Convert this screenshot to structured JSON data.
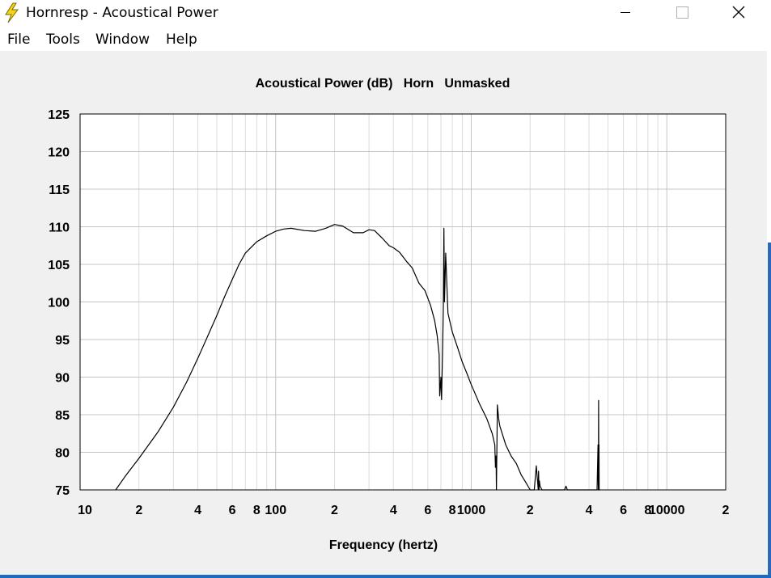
{
  "window": {
    "title": "Hornresp - Acoustical Power",
    "controls": {
      "minimize": "minimize-icon",
      "maximize": "maximize-icon",
      "close": "close-icon"
    }
  },
  "menu": [
    "File",
    "Tools",
    "Window",
    "Help"
  ],
  "colors": {
    "grid_major": "#c4c4c4",
    "grid_minor": "#dcdcdc",
    "trace": "#000000",
    "plot_bg": "#ffffff"
  },
  "chart_data": {
    "type": "line",
    "title": "Acoustical Power (dB)   Horn   Unmasked",
    "xlabel": "Frequency (hertz)",
    "ylabel": "",
    "x_scale": "log",
    "xlim": [
      10,
      20000
    ],
    "ylim": [
      75,
      125
    ],
    "yticks": [
      75,
      80,
      85,
      90,
      95,
      100,
      105,
      110,
      115,
      120,
      125
    ],
    "xtick_labels": [
      {
        "x": 10,
        "label": "10"
      },
      {
        "x": 20,
        "label": "2"
      },
      {
        "x": 40,
        "label": "4"
      },
      {
        "x": 60,
        "label": "6"
      },
      {
        "x": 80,
        "label": "8"
      },
      {
        "x": 100,
        "label": "100"
      },
      {
        "x": 200,
        "label": "2"
      },
      {
        "x": 400,
        "label": "4"
      },
      {
        "x": 600,
        "label": "6"
      },
      {
        "x": 800,
        "label": "8"
      },
      {
        "x": 1000,
        "label": "1000"
      },
      {
        "x": 2000,
        "label": "2"
      },
      {
        "x": 4000,
        "label": "4"
      },
      {
        "x": 6000,
        "label": "6"
      },
      {
        "x": 8000,
        "label": "8"
      },
      {
        "x": 10000,
        "label": "10000"
      },
      {
        "x": 20000,
        "label": "2"
      }
    ],
    "grid": true,
    "series": [
      {
        "x": [
          15.2,
          17,
          20,
          25,
          30,
          35,
          40,
          45,
          50,
          55,
          60,
          65,
          70,
          80,
          90,
          100,
          110,
          120,
          140,
          160,
          180,
          200,
          220,
          250,
          280,
          300,
          320,
          350,
          380,
          400,
          430,
          470,
          500,
          540,
          580,
          620,
          650,
          670,
          685,
          690,
          700,
          705,
          715,
          720,
          725,
          730,
          740,
          760,
          800,
          850,
          900,
          950,
          1000,
          1100,
          1200,
          1280,
          1320,
          1330,
          1340,
          1345,
          1360,
          1380,
          1400,
          1500,
          1600,
          1700,
          1800,
          1900,
          2000,
          2100,
          2150,
          2200,
          2210,
          2220,
          2230,
          2250,
          2300,
          2400,
          2600,
          3000,
          3050,
          3100,
          3200,
          4200,
          4400,
          4450,
          4460,
          4470,
          4480,
          4490,
          4500,
          4510,
          4520,
          4550
        ],
        "y": [
          75,
          76.8,
          79.2,
          82.7,
          86,
          89.3,
          92.5,
          95.5,
          98.2,
          100.8,
          103,
          105,
          106.5,
          108,
          108.8,
          109.4,
          109.7,
          109.8,
          109.5,
          109.4,
          109.8,
          110.3,
          110.1,
          109.2,
          109.2,
          109.6,
          109.5,
          108.5,
          107.5,
          107.2,
          106.6,
          105.3,
          104.5,
          102.5,
          101.5,
          99.5,
          97.5,
          95.5,
          93,
          87.5,
          90,
          87,
          95,
          99.5,
          109.8,
          100,
          106.5,
          98.5,
          96,
          94,
          92,
          90.5,
          89,
          86.5,
          84.5,
          82.5,
          81,
          78,
          79.5,
          75,
          86.3,
          84.5,
          83.5,
          81,
          79.5,
          78.5,
          77,
          76,
          75,
          75,
          78.2,
          75,
          77.5,
          75,
          76.2,
          75.5,
          75,
          75,
          75,
          75,
          75.5,
          75,
          75,
          75,
          75,
          81,
          76,
          75,
          86.9,
          75,
          81,
          75,
          75,
          75
        ]
      }
    ]
  }
}
